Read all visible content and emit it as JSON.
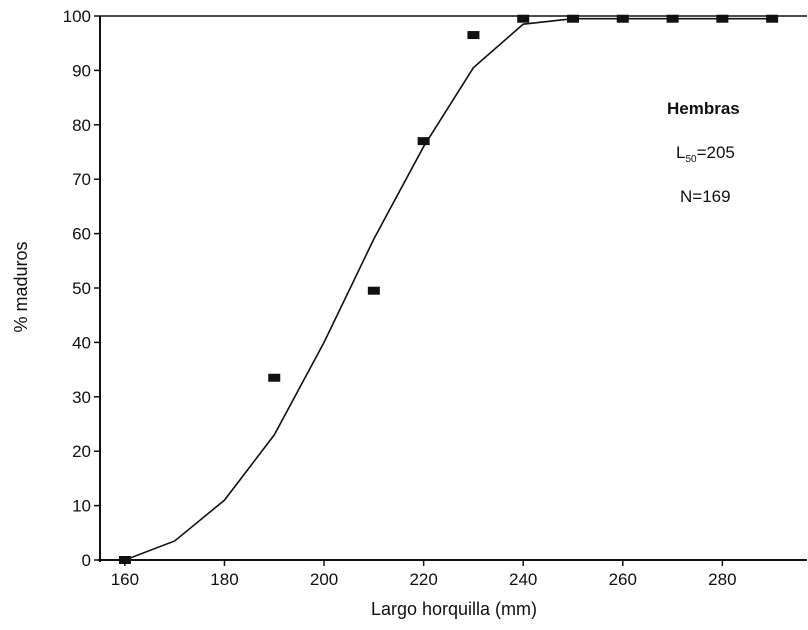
{
  "chart_data": {
    "type": "scatter",
    "title": "",
    "xlabel": "Largo horquilla (mm)",
    "ylabel": "% maduros",
    "xlim": [
      155,
      297
    ],
    "ylim": [
      0,
      100
    ],
    "x_ticks": [
      160,
      180,
      200,
      220,
      240,
      260,
      280
    ],
    "y_ticks": [
      0,
      10,
      20,
      30,
      40,
      50,
      60,
      70,
      80,
      90,
      100
    ],
    "grid": false,
    "series": [
      {
        "kind": "points",
        "marker": "square",
        "x": [
          160,
          190,
          210,
          220,
          230,
          240,
          250,
          260,
          270,
          280,
          290
        ],
        "y": [
          0,
          33.5,
          49.5,
          77,
          96.5,
          99.5,
          99.5,
          99.5,
          99.5,
          99.5,
          99.5
        ]
      },
      {
        "kind": "line",
        "x": [
          160,
          170,
          180,
          190,
          200,
          210,
          220,
          230,
          240,
          250,
          260,
          270,
          280,
          290
        ],
        "y": [
          0,
          3.5,
          11,
          23,
          40,
          59,
          76,
          90.5,
          98.5,
          99.5,
          99.5,
          99.5,
          99.5,
          99.5
        ]
      }
    ],
    "annotations": {
      "group": "Hembras",
      "l50_main": "L",
      "l50_sub": "50",
      "l50_value": "=205",
      "n_text": "N=169"
    }
  }
}
